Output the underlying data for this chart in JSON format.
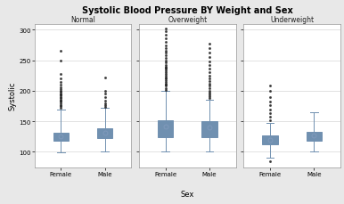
{
  "title": "Systolic Blood Pressure BY Weight and Sex",
  "xlabel": "Sex",
  "ylabel": "Systolic",
  "facets": [
    "Normal",
    "Overweight",
    "Underweight"
  ],
  "categories": [
    "Female",
    "Male"
  ],
  "ylim": [
    75,
    310
  ],
  "yticks": [
    100,
    150,
    200,
    250,
    300
  ],
  "background_color": "#e8e8e8",
  "panel_color": "#ffffff",
  "box_facecolor": "#ccd9e8",
  "box_edgecolor": "#7090b0",
  "median_color": "#7090b0",
  "whisker_color": "#7090b0",
  "flier_color_filled": "#222222",
  "flier_color_open": "#555555",
  "mean_marker_color": "#8099bb",
  "title_fontsize": 7,
  "facet_fontsize": 5.5,
  "tick_fontsize": 5,
  "axis_label_fontsize": 6,
  "groups": {
    "Normal": {
      "Female": {
        "q1": 118,
        "median": 123,
        "q3": 132,
        "mean": 126,
        "whisker_low": 99,
        "whisker_high": 170,
        "outliers_high": [
          172,
          175,
          177,
          180,
          182,
          184,
          186,
          188,
          190,
          192,
          194,
          196,
          198,
          200,
          203,
          206,
          210,
          215,
          220,
          228,
          250,
          265
        ],
        "outliers_low": []
      },
      "Male": {
        "q1": 122,
        "median": 130,
        "q3": 139,
        "mean": 132,
        "whisker_low": 100,
        "whisker_high": 172,
        "outliers_high": [
          174,
          177,
          180,
          184,
          190,
          196,
          200,
          222
        ],
        "outliers_low": []
      }
    },
    "Overweight": {
      "Female": {
        "q1": 124,
        "median": 138,
        "q3": 152,
        "mean": 142,
        "whisker_low": 100,
        "whisker_high": 200,
        "outliers_high": [
          202,
          205,
          208,
          210,
          212,
          215,
          218,
          220,
          222,
          225,
          228,
          230,
          233,
          236,
          238,
          240,
          243,
          246,
          250,
          254,
          258,
          262,
          266,
          270,
          275,
          280,
          286,
          292,
          298,
          302
        ],
        "outliers_low": []
      },
      "Male": {
        "q1": 124,
        "median": 138,
        "q3": 150,
        "mean": 140,
        "whisker_low": 100,
        "whisker_high": 186,
        "outliers_high": [
          188,
          191,
          194,
          197,
          200,
          204,
          208,
          212,
          216,
          220,
          225,
          230,
          236,
          242,
          248,
          255,
          262,
          270,
          278
        ],
        "outliers_low": []
      }
    },
    "Underweight": {
      "Female": {
        "q1": 112,
        "median": 119,
        "q3": 127,
        "mean": 120,
        "whisker_low": 90,
        "whisker_high": 148,
        "outliers_high": [
          152,
          158,
          164,
          170,
          176,
          182,
          190,
          200,
          208
        ],
        "outliers_low": [
          84
        ]
      },
      "Male": {
        "q1": 118,
        "median": 126,
        "q3": 133,
        "mean": 127,
        "whisker_low": 100,
        "whisker_high": 165,
        "outliers_high": [],
        "outliers_low": []
      }
    }
  }
}
